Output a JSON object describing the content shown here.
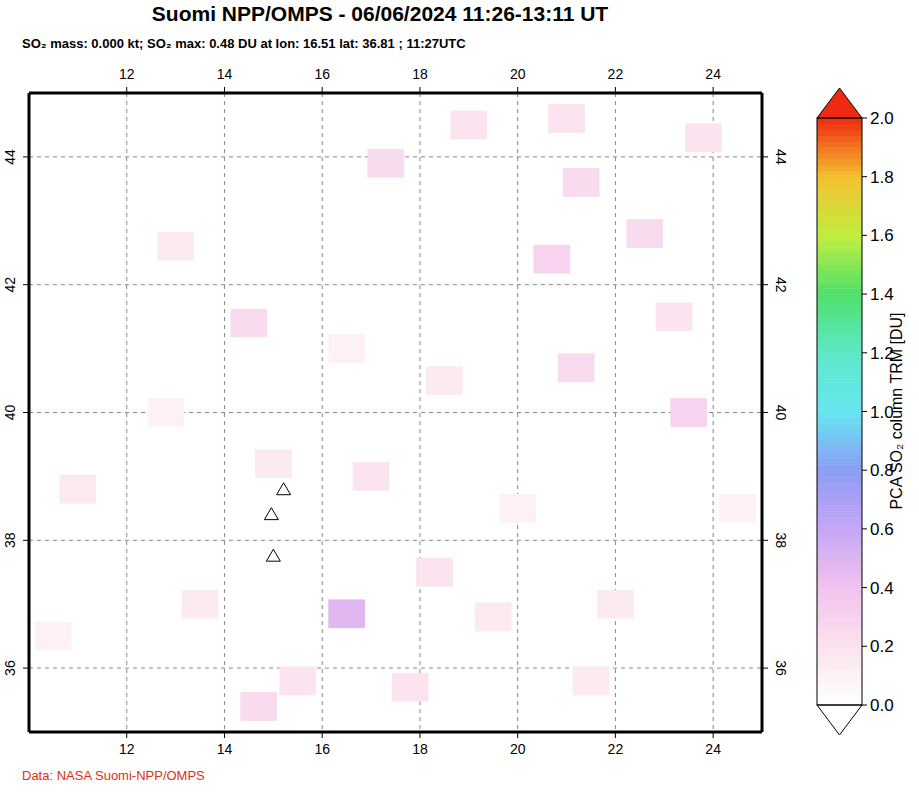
{
  "chart_data": {
    "type": "heatmap",
    "title": "Suomi NPP/OMPS - 06/06/2024 11:26-13:11 UT",
    "subtitle": "SO₂ mass: 0.000 kt; SO₂ max: 0.48 DU at lon: 16.51 lat: 36.81 ; 11:27UTC",
    "source": "Data: NASA Suomi-NPP/OMPS",
    "xlim": [
      10,
      25
    ],
    "ylim": [
      35,
      45
    ],
    "xticks": [
      12,
      14,
      16,
      18,
      20,
      22,
      24
    ],
    "yticks": [
      36,
      38,
      40,
      42,
      44
    ],
    "grid": true,
    "cells": [
      {
        "lon": 16.5,
        "lat": 36.85,
        "value": 0.48
      },
      {
        "lon": 17.3,
        "lat": 43.9,
        "value": 0.25
      },
      {
        "lon": 20.7,
        "lat": 42.4,
        "value": 0.3
      },
      {
        "lon": 21.3,
        "lat": 43.6,
        "value": 0.25
      },
      {
        "lon": 21.0,
        "lat": 44.6,
        "value": 0.2
      },
      {
        "lon": 22.6,
        "lat": 42.8,
        "value": 0.25
      },
      {
        "lon": 23.2,
        "lat": 41.5,
        "value": 0.2
      },
      {
        "lon": 21.2,
        "lat": 40.7,
        "value": 0.25
      },
      {
        "lon": 23.5,
        "lat": 40.0,
        "value": 0.3
      },
      {
        "lon": 14.5,
        "lat": 41.4,
        "value": 0.25
      },
      {
        "lon": 13.0,
        "lat": 42.6,
        "value": 0.15
      },
      {
        "lon": 14.7,
        "lat": 35.4,
        "value": 0.25
      },
      {
        "lon": 17.8,
        "lat": 35.7,
        "value": 0.2
      },
      {
        "lon": 15.5,
        "lat": 35.8,
        "value": 0.2
      },
      {
        "lon": 19.5,
        "lat": 36.8,
        "value": 0.15
      },
      {
        "lon": 18.3,
        "lat": 37.5,
        "value": 0.2
      },
      {
        "lon": 17.0,
        "lat": 39.0,
        "value": 0.2
      },
      {
        "lon": 15.0,
        "lat": 39.2,
        "value": 0.15
      },
      {
        "lon": 11.0,
        "lat": 38.8,
        "value": 0.15
      },
      {
        "lon": 10.5,
        "lat": 36.5,
        "value": 0.1
      },
      {
        "lon": 12.8,
        "lat": 40.0,
        "value": 0.1
      },
      {
        "lon": 19.0,
        "lat": 44.5,
        "value": 0.2
      },
      {
        "lon": 23.8,
        "lat": 44.3,
        "value": 0.2
      },
      {
        "lon": 22.0,
        "lat": 37.0,
        "value": 0.15
      },
      {
        "lon": 20.0,
        "lat": 38.5,
        "value": 0.1
      },
      {
        "lon": 18.5,
        "lat": 40.5,
        "value": 0.15
      },
      {
        "lon": 16.5,
        "lat": 41.0,
        "value": 0.1
      },
      {
        "lon": 13.5,
        "lat": 37.0,
        "value": 0.15
      },
      {
        "lon": 21.5,
        "lat": 35.8,
        "value": 0.15
      },
      {
        "lon": 24.5,
        "lat": 38.5,
        "value": 0.1
      }
    ],
    "volcanoes": [
      {
        "lon": 15.21,
        "lat": 38.79
      },
      {
        "lon": 14.96,
        "lat": 38.4
      },
      {
        "lon": 15.0,
        "lat": 37.75
      }
    ],
    "colorbar": {
      "label": "PCA SO₂ column TRM [DU]",
      "range": [
        0,
        2
      ],
      "ticks": [
        {
          "value": 0,
          "label": "0.0"
        },
        0.2,
        0.4,
        0.6,
        0.8,
        {
          "value": 1,
          "label": "1.0"
        },
        1.2,
        1.4,
        1.6,
        1.8,
        {
          "value": 2,
          "label": "2.0"
        }
      ]
    }
  }
}
